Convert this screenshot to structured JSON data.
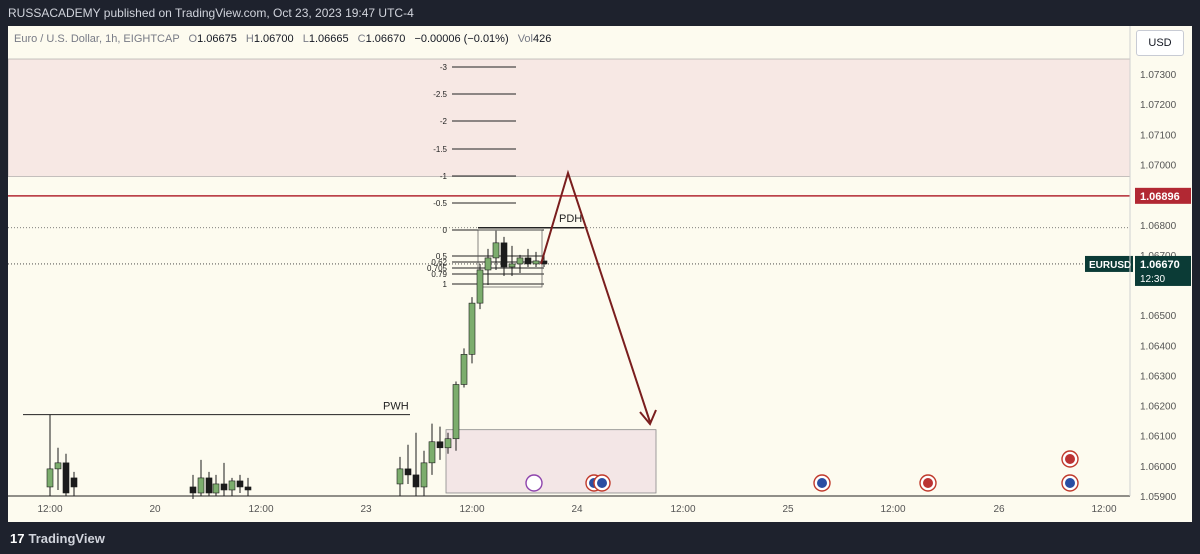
{
  "publisher_line": "RUSSACADEMY published on TradingView.com, Oct 23, 2023 19:47 UTC-4",
  "brand": "TradingView",
  "currency_button": "USD",
  "legend": {
    "symbol": "Euro / U.S. Dollar, 1h, EIGHTCAP",
    "open_label": "O",
    "open": "1.06675",
    "high_label": "H",
    "high": "1.06700",
    "low_label": "L",
    "low": "1.06665",
    "close_label": "C",
    "close": "1.06670",
    "change": "−0.00006 (−0.01%)",
    "vol_label": "Vol",
    "vol": "426"
  },
  "chart_data": {
    "type": "candlestick",
    "symbol": "EURUSD",
    "timeframe": "1h",
    "ylim": [
      1.059,
      1.0736
    ],
    "y_ticks": [
      "1.07300",
      "1.07200",
      "1.07100",
      "1.07000",
      "1.06800",
      "1.06700",
      "1.06500",
      "1.06400",
      "1.06300",
      "1.06200",
      "1.06100",
      "1.06000",
      "1.05900"
    ],
    "x_ticks": [
      "12:00",
      "20",
      "12:00",
      "23",
      "12:00",
      "24",
      "12:00",
      "25",
      "12:00",
      "26",
      "12:00"
    ],
    "price_labels": [
      {
        "name": "level-line",
        "value": "1.06896",
        "color": "#b22833"
      },
      {
        "name": "current-price",
        "symbol": "EURUSD",
        "value": "1.06670",
        "countdown": "12:30",
        "color": "#0b3b36"
      }
    ],
    "resistance_zone": [
      1.0696,
      1.0735
    ],
    "support_zone": [
      1.0591,
      1.0612
    ],
    "horizontal_line": 1.06896,
    "annotations": [
      {
        "text": "PWH",
        "price": 1.0617
      },
      {
        "text": "PDH",
        "price": 1.0679
      }
    ],
    "fib_levels": [
      "-3",
      "-2.5",
      "-2",
      "-1.5",
      "-1",
      "-0.5",
      "0",
      "0.5",
      "0.62",
      "0.705",
      "0.79",
      "1"
    ],
    "candles": [
      {
        "o": 1.0593,
        "h": 1.0617,
        "l": 1.059,
        "c": 1.0599
      },
      {
        "o": 1.0599,
        "h": 1.0606,
        "l": 1.0592,
        "c": 1.0601
      },
      {
        "o": 1.0601,
        "h": 1.0604,
        "l": 1.059,
        "c": 1.0591
      },
      {
        "o": 1.0596,
        "h": 1.0598,
        "l": 1.059,
        "c": 1.0593
      },
      {
        "o": 1.0593,
        "h": 1.0597,
        "l": 1.0589,
        "c": 1.0591
      },
      {
        "o": 1.0591,
        "h": 1.0602,
        "l": 1.059,
        "c": 1.0596
      },
      {
        "o": 1.0596,
        "h": 1.0598,
        "l": 1.059,
        "c": 1.0591
      },
      {
        "o": 1.0591,
        "h": 1.0597,
        "l": 1.059,
        "c": 1.0594
      },
      {
        "o": 1.0594,
        "h": 1.0601,
        "l": 1.059,
        "c": 1.0592
      },
      {
        "o": 1.0592,
        "h": 1.0596,
        "l": 1.059,
        "c": 1.0595
      },
      {
        "o": 1.0595,
        "h": 1.0597,
        "l": 1.0591,
        "c": 1.0593
      },
      {
        "o": 1.0593,
        "h": 1.0596,
        "l": 1.059,
        "c": 1.0592
      },
      {
        "o": 1.0594,
        "h": 1.0603,
        "l": 1.059,
        "c": 1.0599
      },
      {
        "o": 1.0599,
        "h": 1.0607,
        "l": 1.0594,
        "c": 1.0597
      },
      {
        "o": 1.0597,
        "h": 1.0611,
        "l": 1.059,
        "c": 1.0593
      },
      {
        "o": 1.0593,
        "h": 1.0605,
        "l": 1.059,
        "c": 1.0601
      },
      {
        "o": 1.0601,
        "h": 1.0614,
        "l": 1.0597,
        "c": 1.0608
      },
      {
        "o": 1.0608,
        "h": 1.0613,
        "l": 1.0602,
        "c": 1.0606
      },
      {
        "o": 1.0606,
        "h": 1.0611,
        "l": 1.0604,
        "c": 1.0609
      },
      {
        "o": 1.0609,
        "h": 1.0628,
        "l": 1.0605,
        "c": 1.0627
      },
      {
        "o": 1.0627,
        "h": 1.0639,
        "l": 1.0626,
        "c": 1.0637
      },
      {
        "o": 1.0637,
        "h": 1.0656,
        "l": 1.0634,
        "c": 1.0654
      },
      {
        "o": 1.0654,
        "h": 1.0667,
        "l": 1.0652,
        "c": 1.0665
      },
      {
        "o": 1.0665,
        "h": 1.0672,
        "l": 1.066,
        "c": 1.0669
      },
      {
        "o": 1.0669,
        "h": 1.0678,
        "l": 1.0665,
        "c": 1.0674
      },
      {
        "o": 1.0674,
        "h": 1.0676,
        "l": 1.0663,
        "c": 1.0666
      },
      {
        "o": 1.0666,
        "h": 1.0673,
        "l": 1.0663,
        "c": 1.0667
      },
      {
        "o": 1.0667,
        "h": 1.067,
        "l": 1.0664,
        "c": 1.0669
      },
      {
        "o": 1.0669,
        "h": 1.0672,
        "l": 1.0666,
        "c": 1.0667
      },
      {
        "o": 1.0667,
        "h": 1.0671,
        "l": 1.0666,
        "c": 1.0668
      },
      {
        "o": 1.0668,
        "h": 1.067,
        "l": 1.0666,
        "c": 1.0667
      }
    ],
    "event_icons": [
      {
        "name": "lightning-icon"
      },
      {
        "name": "eu-flag-icon"
      },
      {
        "name": "eu-flag-icon"
      },
      {
        "name": "eu-flag-icon"
      },
      {
        "name": "us-flag-icon"
      },
      {
        "name": "us-flag-icon"
      },
      {
        "name": "eu-flag-icon"
      }
    ]
  }
}
